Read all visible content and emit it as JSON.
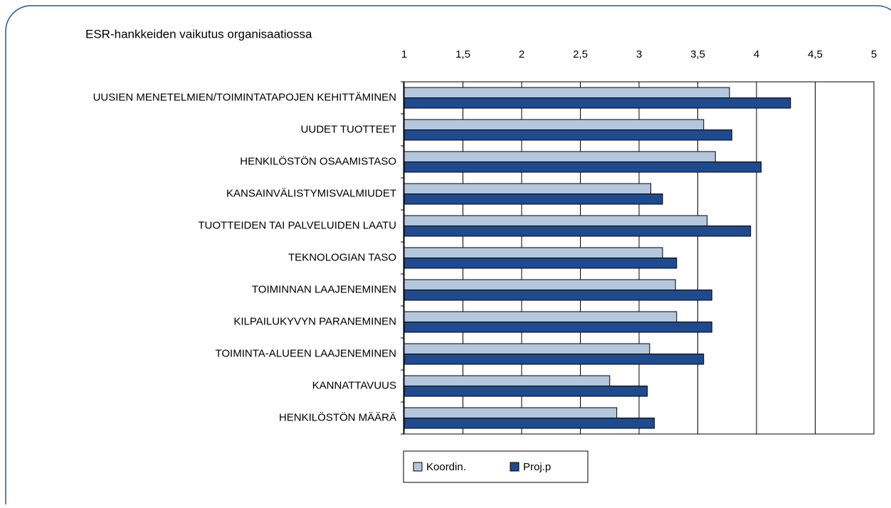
{
  "chart_data": {
    "type": "hbar",
    "title": "ESR-hankkeiden vaikutus organisaatiossa",
    "categories": [
      "UUSIEN MENETELMIEN/TOIMINTATAPOJEN KEHITTÄMINEN",
      "UUDET TUOTTEET",
      "HENKILÖSTÖN OSAAMISTASO",
      "KANSAINVÄLISTYMISVALMIUDET",
      "TUOTTEIDEN TAI PALVELUIDEN LAATU",
      "TEKNOLOGIAN TASO",
      "TOIMINNAN LAAJENEMINEN",
      "KILPAILUKYVYN PARANEMINEN",
      "TOIMINTA-ALUEEN LAAJENEMINEN",
      "KANNATTAVUUS",
      "HENKILÖSTÖN MÄÄRÄ"
    ],
    "series": [
      {
        "name": "Koordin.",
        "color": "#b4c7dc",
        "values": [
          3.77,
          3.55,
          3.65,
          3.1,
          3.58,
          3.2,
          3.31,
          3.32,
          3.09,
          2.75,
          2.81
        ]
      },
      {
        "name": "Proj.p",
        "color": "#1f4b8e",
        "values": [
          4.29,
          3.79,
          4.04,
          3.2,
          3.95,
          3.32,
          3.62,
          3.62,
          3.55,
          3.07,
          3.13
        ]
      }
    ],
    "xlim": [
      1,
      5
    ],
    "xticks": [
      1,
      {
        "value": 1.5,
        "label": "1,5"
      },
      2,
      {
        "value": 2.5,
        "label": "2,5"
      },
      3,
      {
        "value": 3.5,
        "label": "3,5"
      },
      4,
      {
        "value": 4.5,
        "label": "4,5"
      },
      5
    ],
    "grid": true
  }
}
